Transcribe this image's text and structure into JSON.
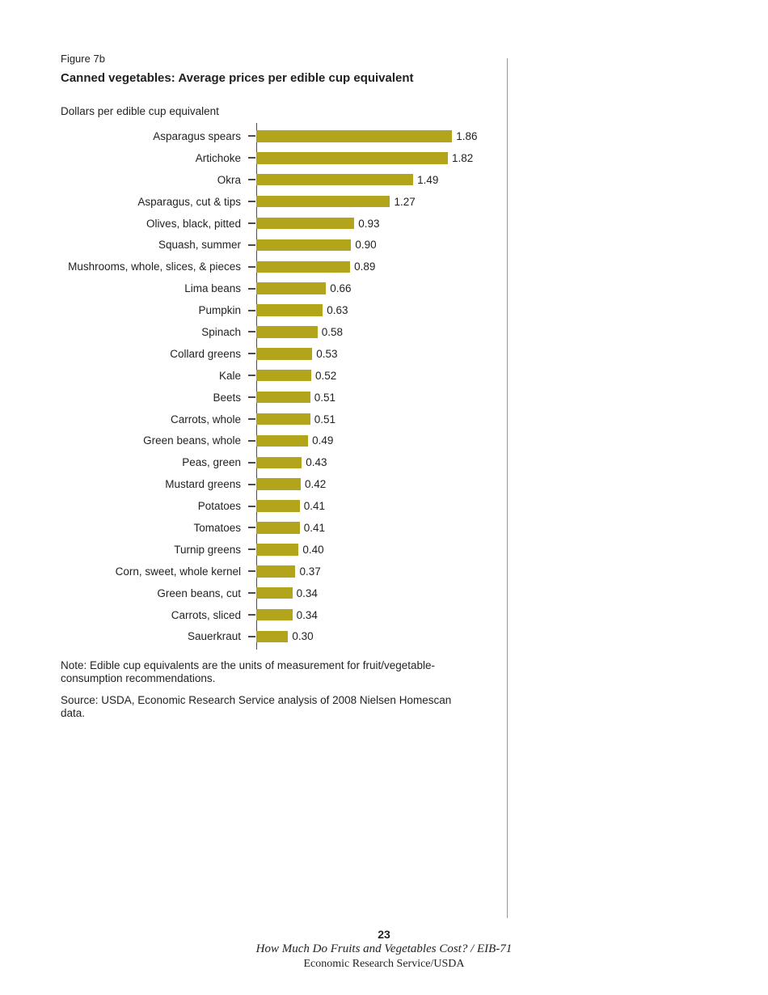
{
  "page": {
    "figure_label": "Figure 7b",
    "title": "Canned vegetables: Average prices per edible cup equivalent",
    "axis_unit_label": "Dollars per edible cup equivalent",
    "note": "Note: Edible cup equivalents are the units of measurement for fruit/vegetable-consumption recommendations.",
    "source": "Source: USDA, Economic Research Service analysis of 2008 Nielsen Homescan data.",
    "page_number": "23",
    "footer_title": "How Much Do Fruits and Vegetables Cost? / EIB-71",
    "footer_org": "Economic Research Service/USDA"
  },
  "colors": {
    "bar": "#b2a51b",
    "text": "#231f20",
    "axis": "#4d4d4f",
    "page_rule": "#97979b"
  },
  "chart_data": {
    "type": "bar",
    "orientation": "horizontal",
    "title": "Canned vegetables: Average prices per edible cup equivalent",
    "xlabel": "Dollars per edible cup equivalent",
    "ylabel": "",
    "xlim": [
      0,
      2.0
    ],
    "grid": false,
    "legend": "none",
    "categories": [
      "Asparagus spears",
      "Artichoke",
      "Okra",
      "Asparagus, cut & tips",
      "Olives, black, pitted",
      "Squash, summer",
      "Mushrooms, whole, slices, & pieces",
      "Lima beans",
      "Pumpkin",
      "Spinach",
      "Collard greens",
      "Kale",
      "Beets",
      "Carrots, whole",
      "Green beans, whole",
      "Peas, green",
      "Mustard greens",
      "Potatoes",
      "Tomatoes",
      "Turnip greens",
      "Corn, sweet, whole kernel",
      "Green beans, cut",
      "Carrots, sliced",
      "Sauerkraut"
    ],
    "values": [
      1.86,
      1.82,
      1.49,
      1.27,
      0.93,
      0.9,
      0.89,
      0.66,
      0.63,
      0.58,
      0.53,
      0.52,
      0.51,
      0.51,
      0.49,
      0.43,
      0.42,
      0.41,
      0.41,
      0.4,
      0.37,
      0.34,
      0.34,
      0.3
    ],
    "value_labels": [
      "1.86",
      "1.82",
      "1.49",
      "1.27",
      "0.93",
      "0.90",
      "0.89",
      "0.66",
      "0.63",
      "0.58",
      "0.53",
      "0.52",
      "0.51",
      "0.51",
      "0.49",
      "0.43",
      "0.42",
      "0.41",
      "0.41",
      "0.40",
      "0.37",
      "0.34",
      "0.34",
      "0.30"
    ]
  }
}
